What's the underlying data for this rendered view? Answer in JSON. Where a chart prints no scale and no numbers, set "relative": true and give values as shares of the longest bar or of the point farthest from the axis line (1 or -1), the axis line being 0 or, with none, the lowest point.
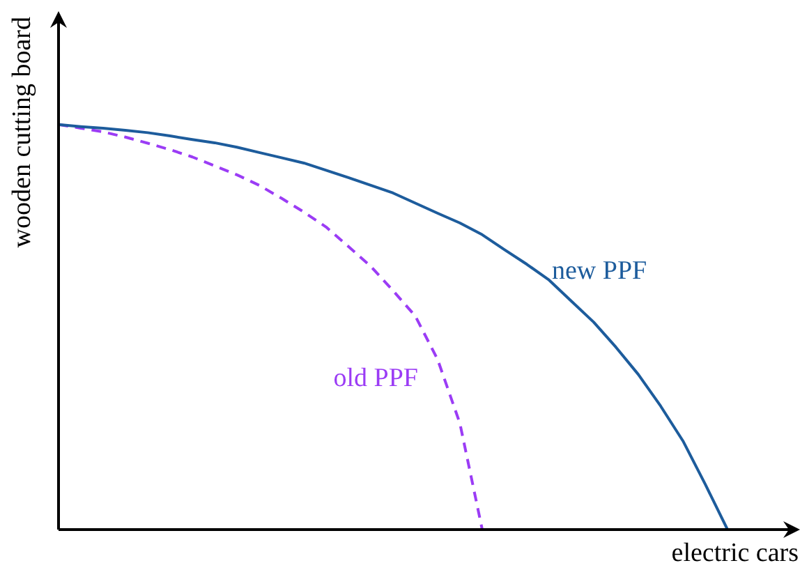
{
  "chart_data": {
    "type": "line",
    "relative": true,
    "xlabel": "electric cars",
    "ylabel": "wooden cutting board",
    "legend": false,
    "marker": "none",
    "tick_labels": false,
    "categories": [
      null,
      null,
      null,
      null,
      null,
      null,
      null,
      null,
      null,
      null,
      null,
      null,
      null,
      null,
      null,
      null,
      null,
      null,
      null,
      null,
      null,
      null,
      null,
      null,
      null,
      null,
      null,
      null,
      null,
      null,
      null,
      null,
      null,
      null
    ],
    "series": [
      {
        "name": "new PPF",
        "color": "#1d5c9c",
        "line_style": "solid",
        "values": [
          1,
          0.995,
          0.991,
          0.986,
          0.98,
          0.972,
          0.963,
          0.955,
          0.944,
          0.931,
          0.918,
          0.905,
          0.887,
          0.869,
          0.85,
          0.831,
          0.806,
          0.781,
          0.757,
          0.728,
          0.691,
          0.655,
          0.616,
          0.564,
          0.512,
          0.45,
          0.383,
          0.305,
          0.219,
          0.112,
          0,
          null,
          null,
          null
        ]
      },
      {
        "name": "old PPF",
        "color": "#9b3cf5",
        "line_style": "dashed",
        "values": [
          1,
          0.991,
          0.982,
          0.969,
          0.954,
          0.938,
          0.92,
          0.898,
          0.876,
          0.85,
          0.818,
          0.784,
          0.747,
          0.699,
          0.65,
          0.59,
          0.527,
          0.42,
          0.262,
          0,
          null,
          null,
          null,
          null,
          null,
          null,
          null,
          null,
          null,
          null,
          null,
          null,
          null,
          null
        ]
      }
    ]
  }
}
